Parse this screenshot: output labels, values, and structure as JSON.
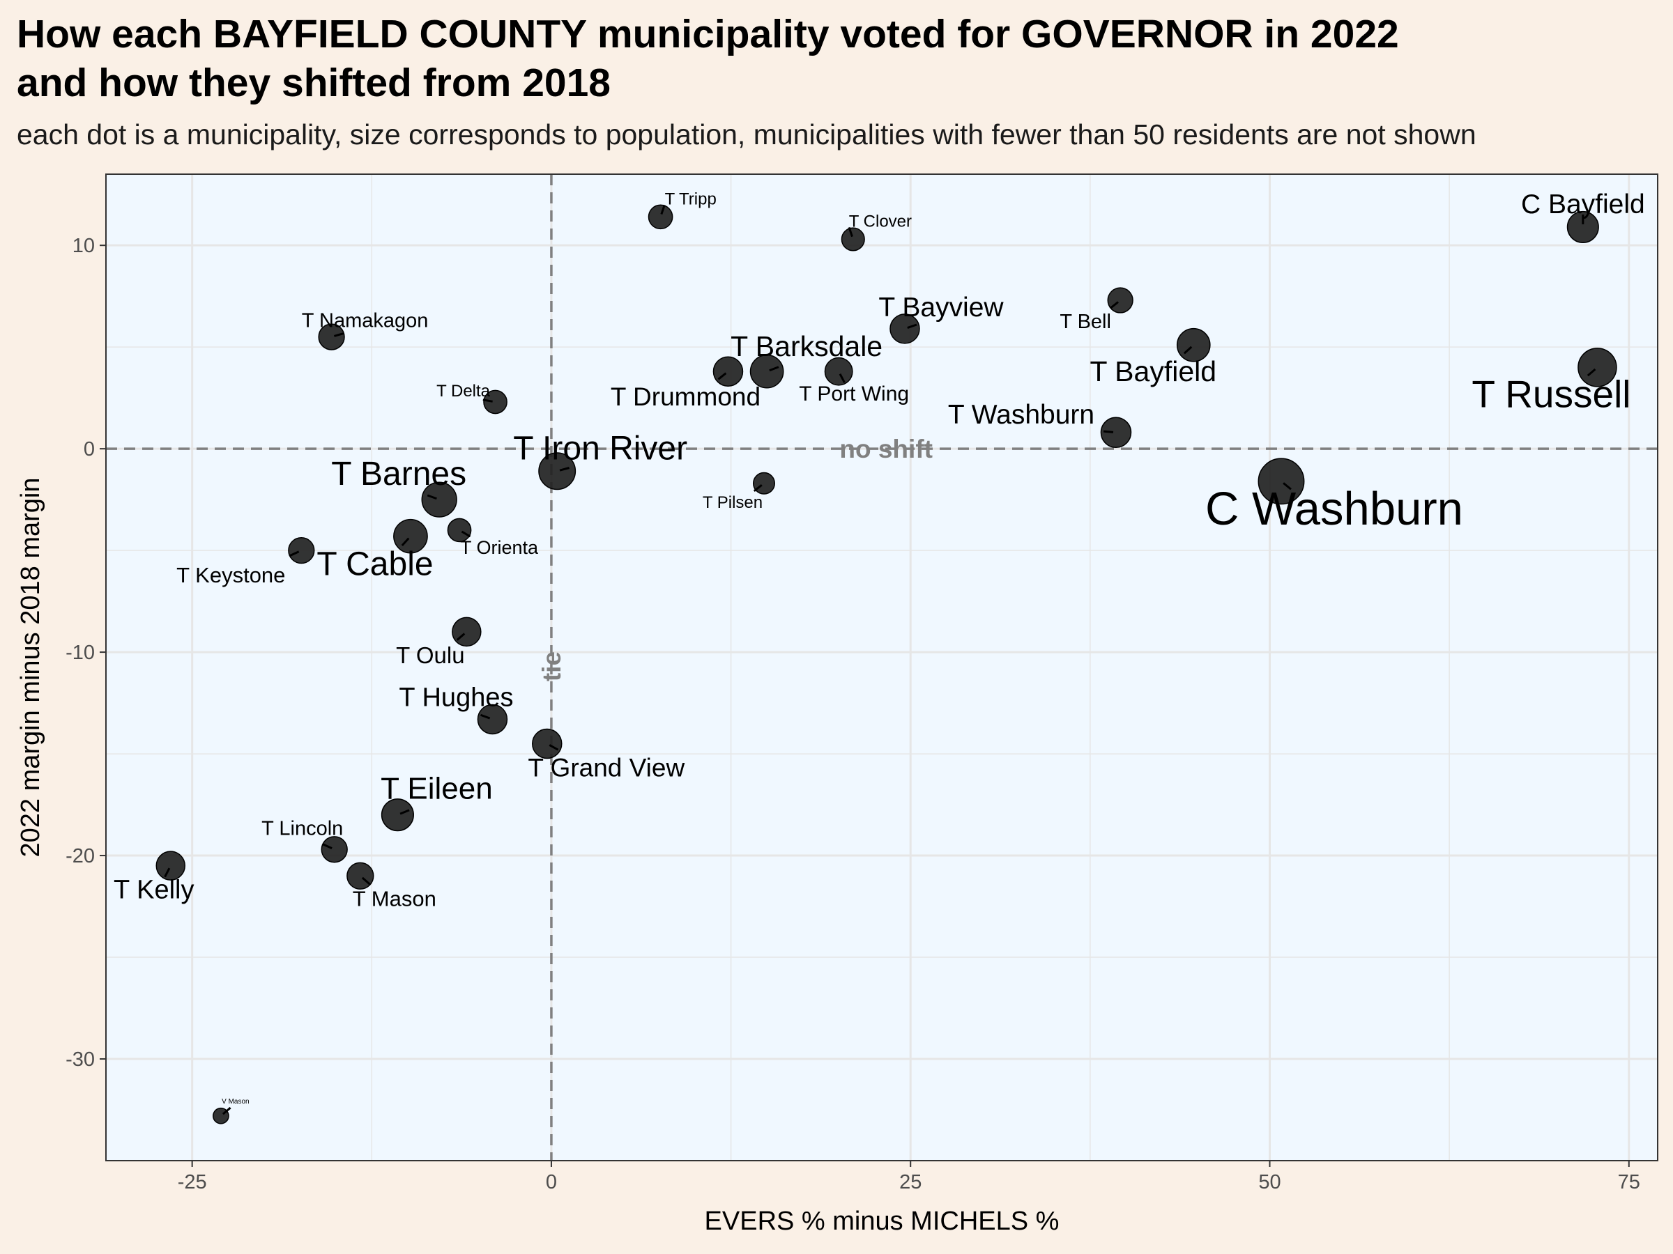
{
  "title_line1": "How each BAYFIELD COUNTY municipality voted for GOVERNOR in 2022",
  "title_line2": "and how they shifted from 2018",
  "subtitle": "each dot is a municipality, size corresponds to population, municipalities with fewer than 50 residents are not shown",
  "colors": {
    "background": "#faf0e6",
    "panel": "#f0f8ff",
    "grid": "#e6e6e6",
    "point": "#222222",
    "reference_line": "#808080"
  },
  "chart_data": {
    "type": "scatter",
    "xlabel": "EVERS % minus MICHELS %",
    "ylabel": "2022 margin minus 2018 margin",
    "xlim": [
      -31,
      77
    ],
    "ylim": [
      -35,
      13.5
    ],
    "x_ticks": [
      -25,
      0,
      25,
      50,
      75
    ],
    "y_ticks": [
      10,
      0,
      -10,
      -20,
      -30
    ],
    "x_tick_labels": [
      "-25",
      "0",
      "25",
      "50",
      "75"
    ],
    "y_tick_labels": [
      "10",
      "0",
      "-10",
      "-20",
      "-30"
    ],
    "grid": true,
    "reference_lines": [
      {
        "orientation": "horizontal",
        "value": 0,
        "label": "no shift"
      },
      {
        "orientation": "vertical",
        "value": 0,
        "label": "tie"
      }
    ],
    "points": [
      {
        "name": "T Tripp",
        "x": 7.6,
        "y": 11.4,
        "size": 0.35
      },
      {
        "name": "T Clover",
        "x": 21.0,
        "y": 10.3,
        "size": 0.32
      },
      {
        "name": "C Bayfield",
        "x": 71.8,
        "y": 10.9,
        "size": 0.55
      },
      {
        "name": "T Bell",
        "x": 39.6,
        "y": 7.3,
        "size": 0.38
      },
      {
        "name": "T Namakagon",
        "x": -15.3,
        "y": 5.5,
        "size": 0.4
      },
      {
        "name": "T Bayview",
        "x": 24.6,
        "y": 5.9,
        "size": 0.5
      },
      {
        "name": "T Bayfield",
        "x": 44.7,
        "y": 5.1,
        "size": 0.6
      },
      {
        "name": "T Barksdale",
        "x": 15.0,
        "y": 3.8,
        "size": 0.6
      },
      {
        "name": "T Drummond",
        "x": 12.3,
        "y": 3.8,
        "size": 0.5
      },
      {
        "name": "T Port Wing",
        "x": 20.0,
        "y": 3.8,
        "size": 0.45
      },
      {
        "name": "T Russell",
        "x": 72.8,
        "y": 4.0,
        "size": 0.75
      },
      {
        "name": "T Delta",
        "x": -3.9,
        "y": 2.3,
        "size": 0.33
      },
      {
        "name": "T Washburn",
        "x": 39.3,
        "y": 0.8,
        "size": 0.52
      },
      {
        "name": "T Iron River",
        "x": 0.4,
        "y": -1.1,
        "size": 0.7
      },
      {
        "name": "C Washburn",
        "x": 50.8,
        "y": -1.6,
        "size": 0.95
      },
      {
        "name": "T Pilsen",
        "x": 14.8,
        "y": -1.7,
        "size": 0.28
      },
      {
        "name": "T Barnes",
        "x": -7.8,
        "y": -2.5,
        "size": 0.65
      },
      {
        "name": "T Orienta",
        "x": -6.4,
        "y": -4.0,
        "size": 0.33
      },
      {
        "name": "T Cable",
        "x": -9.8,
        "y": -4.3,
        "size": 0.62
      },
      {
        "name": "T Keystone",
        "x": -17.4,
        "y": -5.0,
        "size": 0.4
      },
      {
        "name": "T Oulu",
        "x": -5.9,
        "y": -9.0,
        "size": 0.48
      },
      {
        "name": "T Hughes",
        "x": -4.1,
        "y": -13.3,
        "size": 0.5
      },
      {
        "name": "T Grand View",
        "x": -0.3,
        "y": -14.5,
        "size": 0.5
      },
      {
        "name": "T Eileen",
        "x": -10.7,
        "y": -18.0,
        "size": 0.57
      },
      {
        "name": "T Lincoln",
        "x": -15.1,
        "y": -19.7,
        "size": 0.4
      },
      {
        "name": "T Kelly",
        "x": -26.5,
        "y": -20.5,
        "size": 0.48
      },
      {
        "name": "T Mason",
        "x": -13.3,
        "y": -21.0,
        "size": 0.42
      },
      {
        "name": "V Mason",
        "x": -23.0,
        "y": -32.8,
        "size": 0.12
      }
    ]
  }
}
